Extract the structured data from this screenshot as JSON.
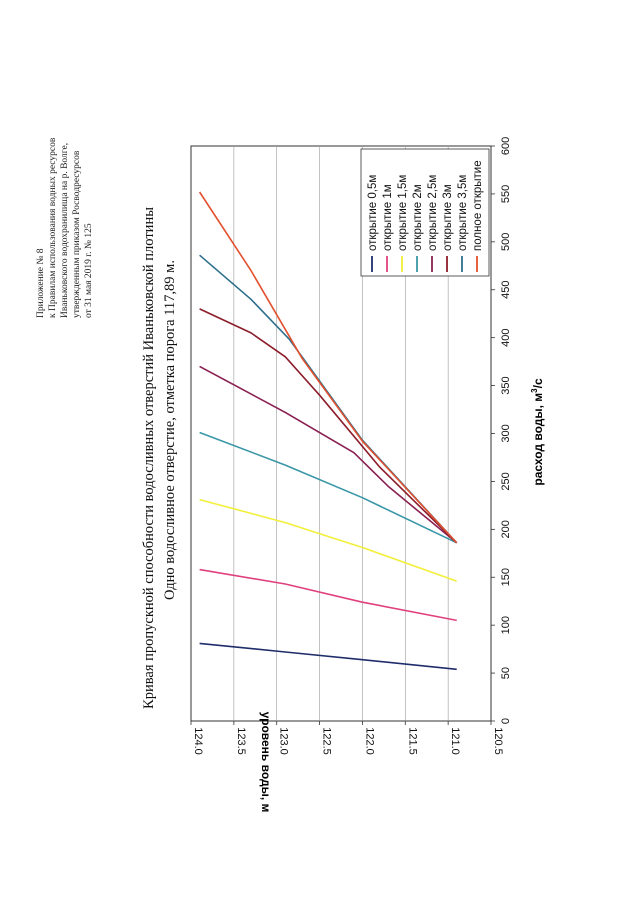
{
  "header": {
    "line1": "Приложение № 8",
    "line2": "к Правилам использования водных ресурсов",
    "line3": "Иваньковского водохранилища на р. Волге,",
    "line4": "утвержденным приказом Росводресурсов",
    "line5": "от 31 мая 2019 г. № 125"
  },
  "chart_data": {
    "type": "line",
    "title": "Кривая пропускной способности водосливных отверстий Иваньковской плотины",
    "subtitle": "Одно водосливное отверстие, отметка порога 117,89 м.",
    "xlabel": "расход воды, м",
    "xlabel_sup": "3",
    "xlabel_suffix": "/с",
    "ylabel": "уровень воды, м",
    "xlim": [
      0,
      600
    ],
    "ylim": [
      120.5,
      124.0
    ],
    "xticks": [
      0,
      50,
      100,
      150,
      200,
      250,
      300,
      350,
      400,
      450,
      500,
      550,
      600
    ],
    "yticks": [
      124.0,
      123.5,
      123.0,
      122.5,
      122.0,
      121.5,
      121.0,
      120.5
    ],
    "xtick_labels": [
      "0",
      "50",
      "100",
      "150",
      "200",
      "250",
      "300",
      "350",
      "400",
      "450",
      "500",
      "550",
      "600"
    ],
    "ytick_labels": [
      "124.0",
      "123.5",
      "123.0",
      "122.5",
      "122.0",
      "121.5",
      "121.0",
      "120.5"
    ],
    "legend_position": "top-right",
    "series": [
      {
        "name": "открытие 0,5м",
        "color": "#1f2d6b",
        "points": [
          [
            54,
            120.9
          ],
          [
            64,
            122.0
          ],
          [
            72,
            122.9
          ],
          [
            81,
            123.9
          ]
        ]
      },
      {
        "name": "открытие 1м",
        "color": "#e0407e",
        "points": [
          [
            105,
            120.9
          ],
          [
            124,
            122.0
          ],
          [
            143,
            122.9
          ],
          [
            158,
            123.9
          ]
        ]
      },
      {
        "name": "открытие 1,5м",
        "color": "#f2ef3a",
        "points": [
          [
            146,
            120.9
          ],
          [
            181,
            122.0
          ],
          [
            207,
            122.9
          ],
          [
            231,
            123.9
          ]
        ]
      },
      {
        "name": "открытие 2м",
        "color": "#3a97a8",
        "points": [
          [
            186,
            120.9
          ],
          [
            233,
            122.0
          ],
          [
            267,
            122.9
          ],
          [
            301,
            123.9
          ]
        ]
      },
      {
        "name": "открытие 2,5м",
        "color": "#8a1f52",
        "points": [
          [
            186,
            120.9
          ],
          [
            245,
            121.7
          ],
          [
            280,
            122.1
          ],
          [
            322,
            122.9
          ],
          [
            370,
            123.9
          ]
        ]
      },
      {
        "name": "открытие 3м",
        "color": "#8c1d2a",
        "points": [
          [
            186,
            120.9
          ],
          [
            265,
            121.8
          ],
          [
            340,
            122.5
          ],
          [
            380,
            122.9
          ],
          [
            405,
            123.3
          ],
          [
            430,
            123.9
          ]
        ]
      },
      {
        "name": "открытие 3,5м",
        "color": "#2e6f8c",
        "points": [
          [
            186,
            120.9
          ],
          [
            293,
            122.0
          ],
          [
            398,
            122.85
          ],
          [
            440,
            123.3
          ],
          [
            486,
            123.9
          ]
        ]
      },
      {
        "name": "полное открытие",
        "color": "#e2502e",
        "points": [
          [
            186,
            120.9
          ],
          [
            292,
            122.0
          ],
          [
            378,
            122.7
          ],
          [
            470,
            123.3
          ],
          [
            552,
            123.9
          ]
        ]
      }
    ]
  }
}
